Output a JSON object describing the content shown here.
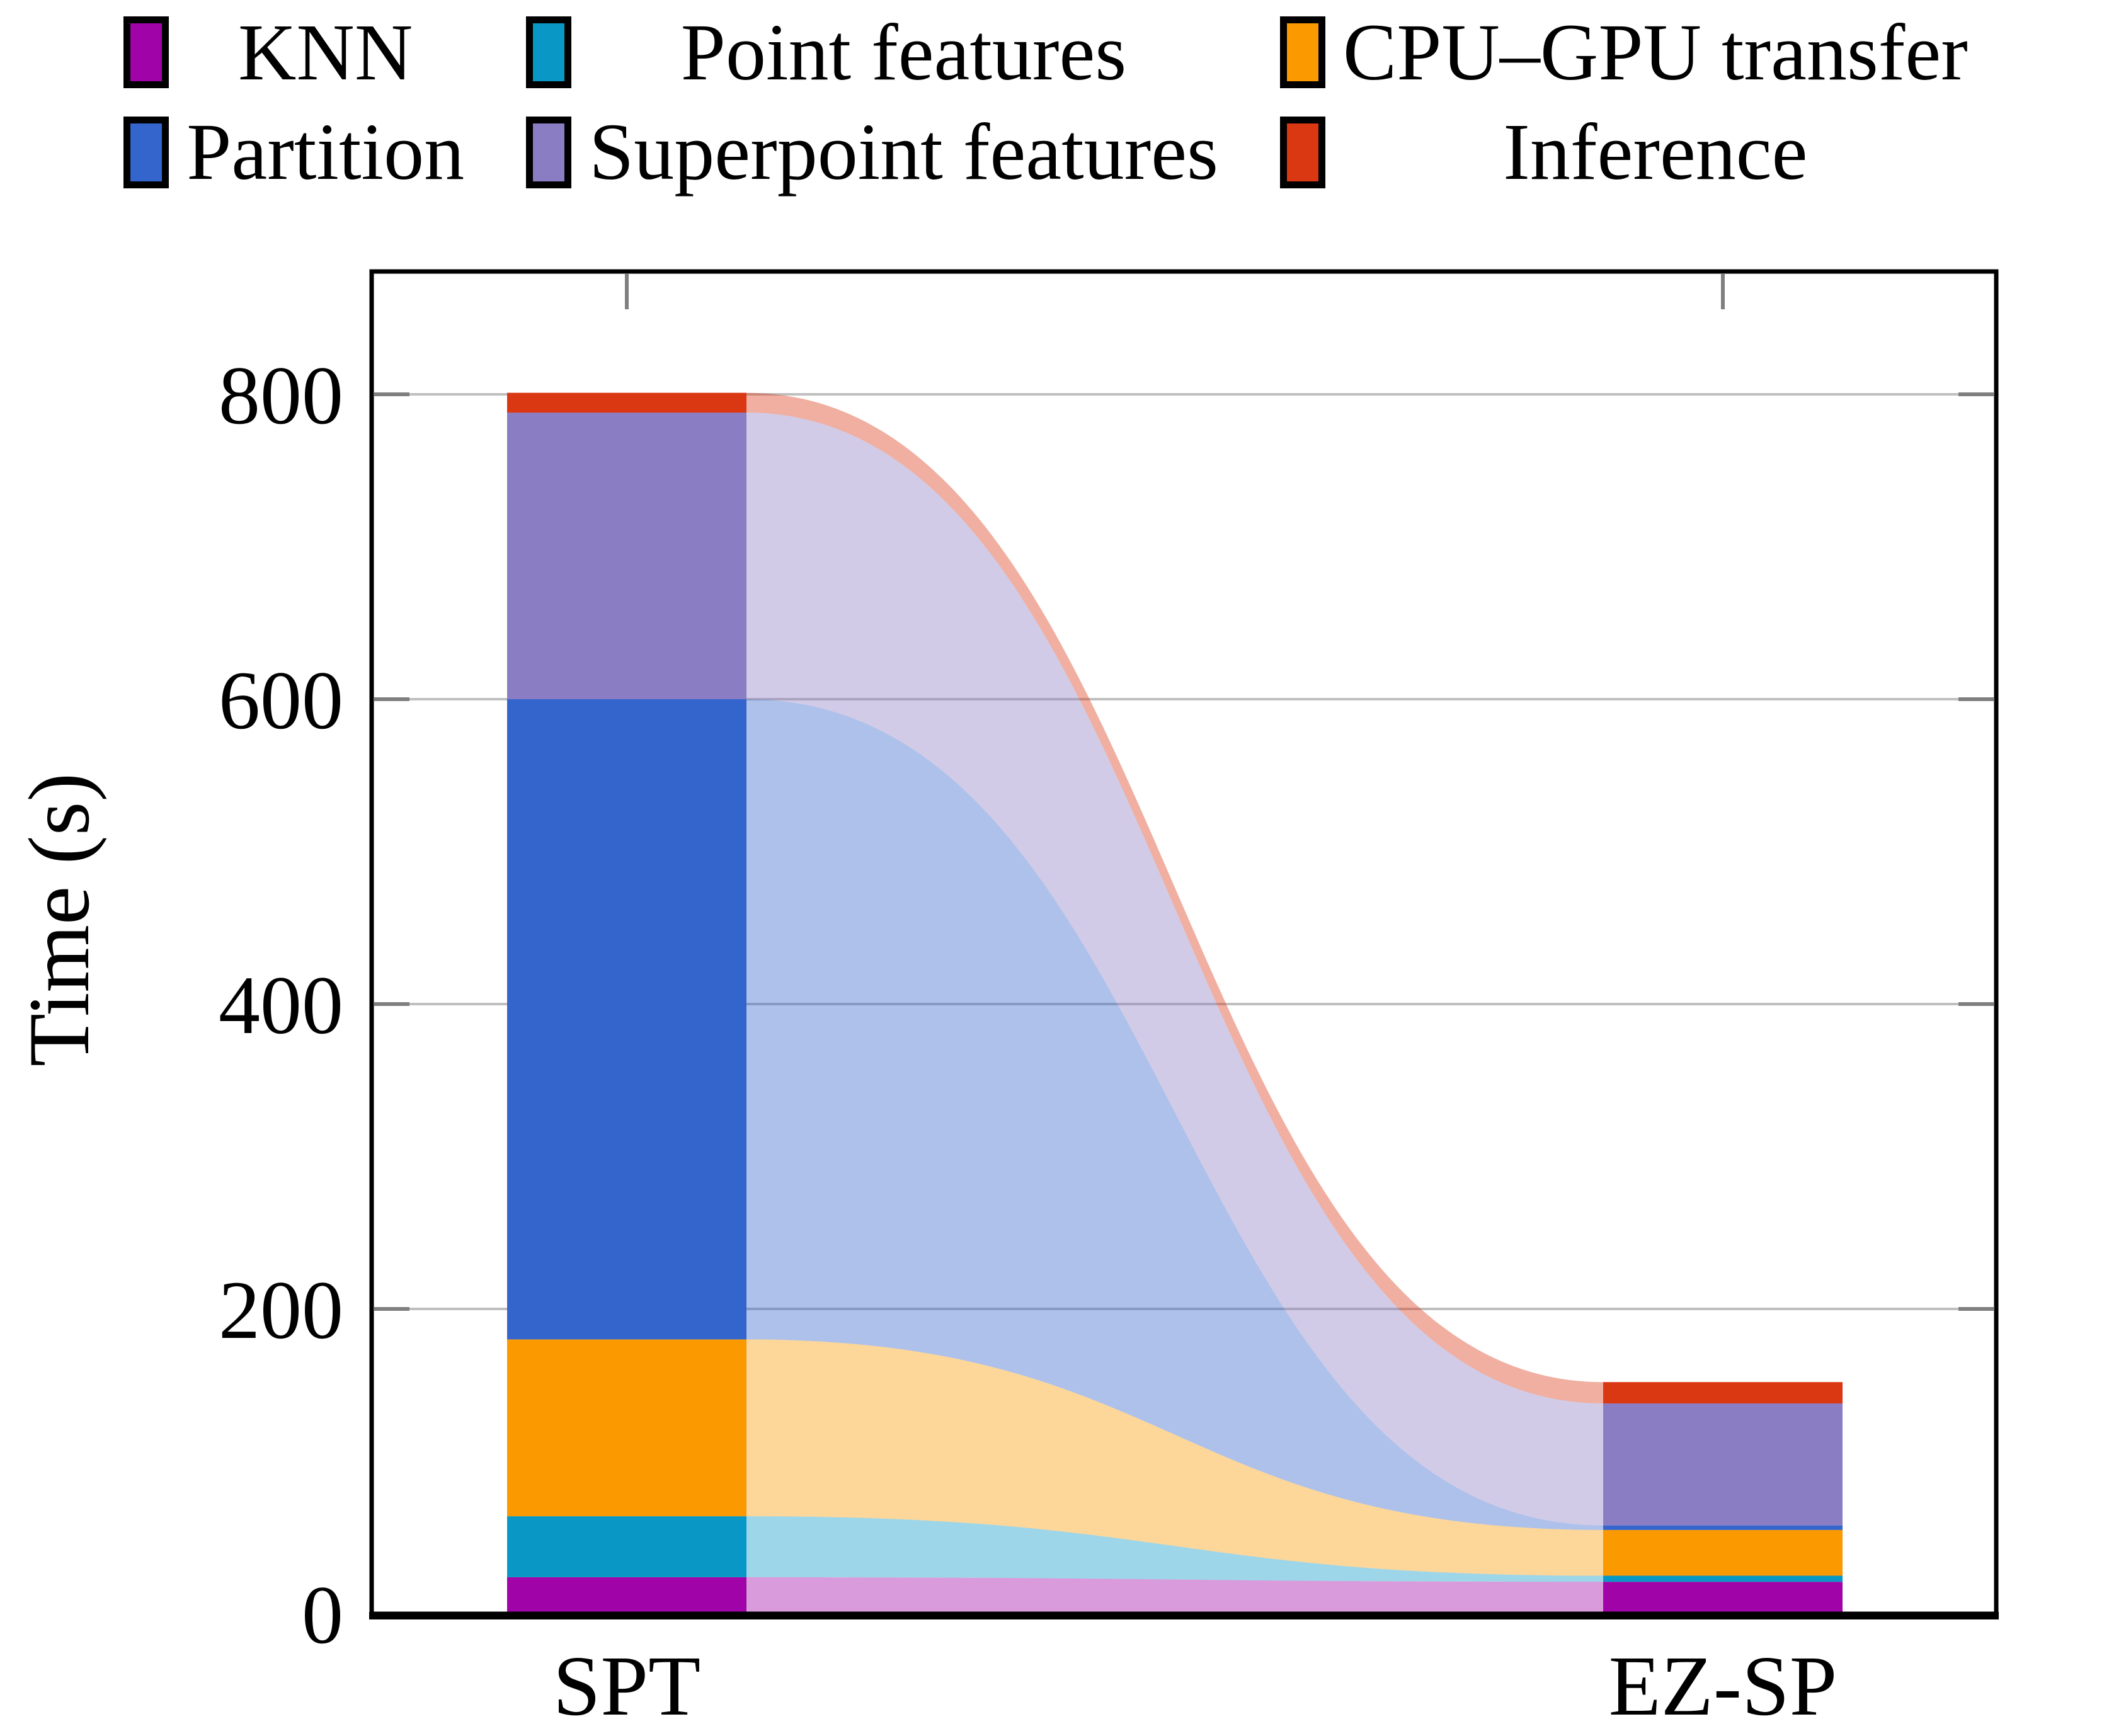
{
  "chart_data": {
    "type": "bar",
    "variant": "stacked-bars-with-flow-ribbons",
    "title": "",
    "categories": [
      "SPT",
      "EZ-SP"
    ],
    "series": [
      {
        "name": "KNN",
        "color": "#A004A8",
        "values": [
          24,
          21
        ]
      },
      {
        "name": "Point features",
        "color": "#0998C5",
        "values": [
          40,
          4
        ]
      },
      {
        "name": "CPU–GPU transfer",
        "color": "#FB9900",
        "values": [
          116,
          30
        ]
      },
      {
        "name": "Partition",
        "color": "#3365CD",
        "values": [
          420,
          3
        ]
      },
      {
        "name": "Superpoint features",
        "color": "#8B7DC3",
        "values": [
          188,
          80
        ]
      },
      {
        "name": "Inference",
        "color": "#DA3713",
        "values": [
          13,
          14
        ]
      }
    ],
    "totals": [
      801,
      152
    ],
    "ylabel": "Time (s)",
    "yticks": [
      0,
      200,
      400,
      600,
      800
    ],
    "ylim": [
      0,
      880
    ],
    "grid": "horizontal",
    "grid_color": "#BFBFBF",
    "tick_color": "#7F7F7F",
    "axis_color": "#000000",
    "legend_position": "top",
    "legend_columns": 3,
    "ribbon_opacity": 0.4
  }
}
